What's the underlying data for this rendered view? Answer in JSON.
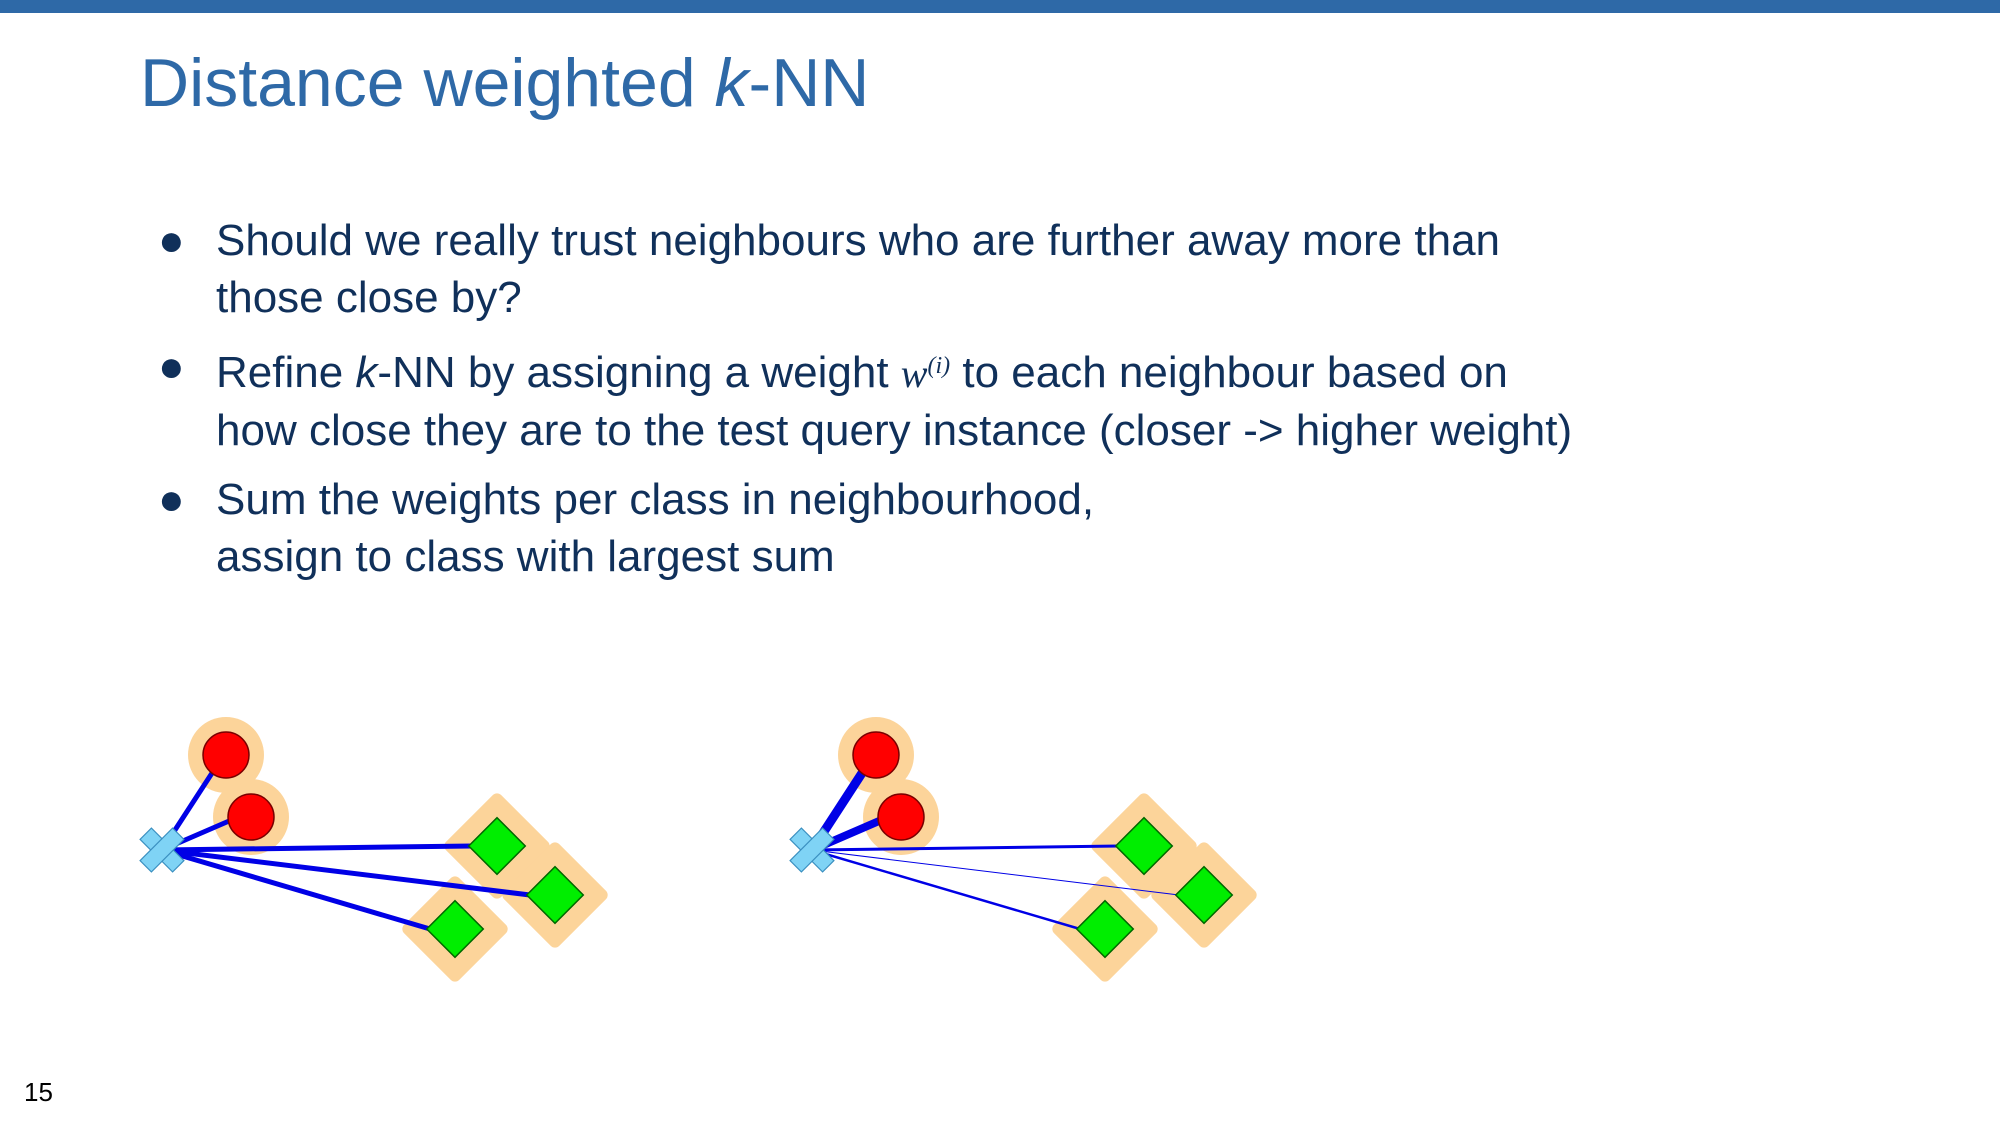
{
  "slide": {
    "title_prefix": "Distance weighted ",
    "title_k": "k",
    "title_suffix": "-NN",
    "page_number": "15"
  },
  "bullets": [
    {
      "line1": "Should we really trust neighbours who are further away more than",
      "line2": "those close by?"
    },
    {
      "line1_a": "Refine ",
      "line1_k": "k",
      "line1_b": "-NN by assigning a weight ",
      "math_w": "w",
      "math_sup": "(i)",
      "line1_c": " to each neighbour based on",
      "line2": "how close they are to the test query instance (closer -> higher weight)"
    },
    {
      "line1": "Sum the weights per class in neighbourhood,",
      "line2": "assign to class with largest sum"
    }
  ],
  "colors": {
    "title": "#2e69a7",
    "text": "#10305a",
    "line": "#0000e6",
    "red_class": "#ff0000",
    "green_class": "#00ee00",
    "query": "#7fd3f5",
    "highlight": "#fcd49a"
  },
  "icons": {
    "query_marker": "cross-icon",
    "class_a_marker": "circle-icon",
    "class_b_marker": "diamond-icon"
  }
}
